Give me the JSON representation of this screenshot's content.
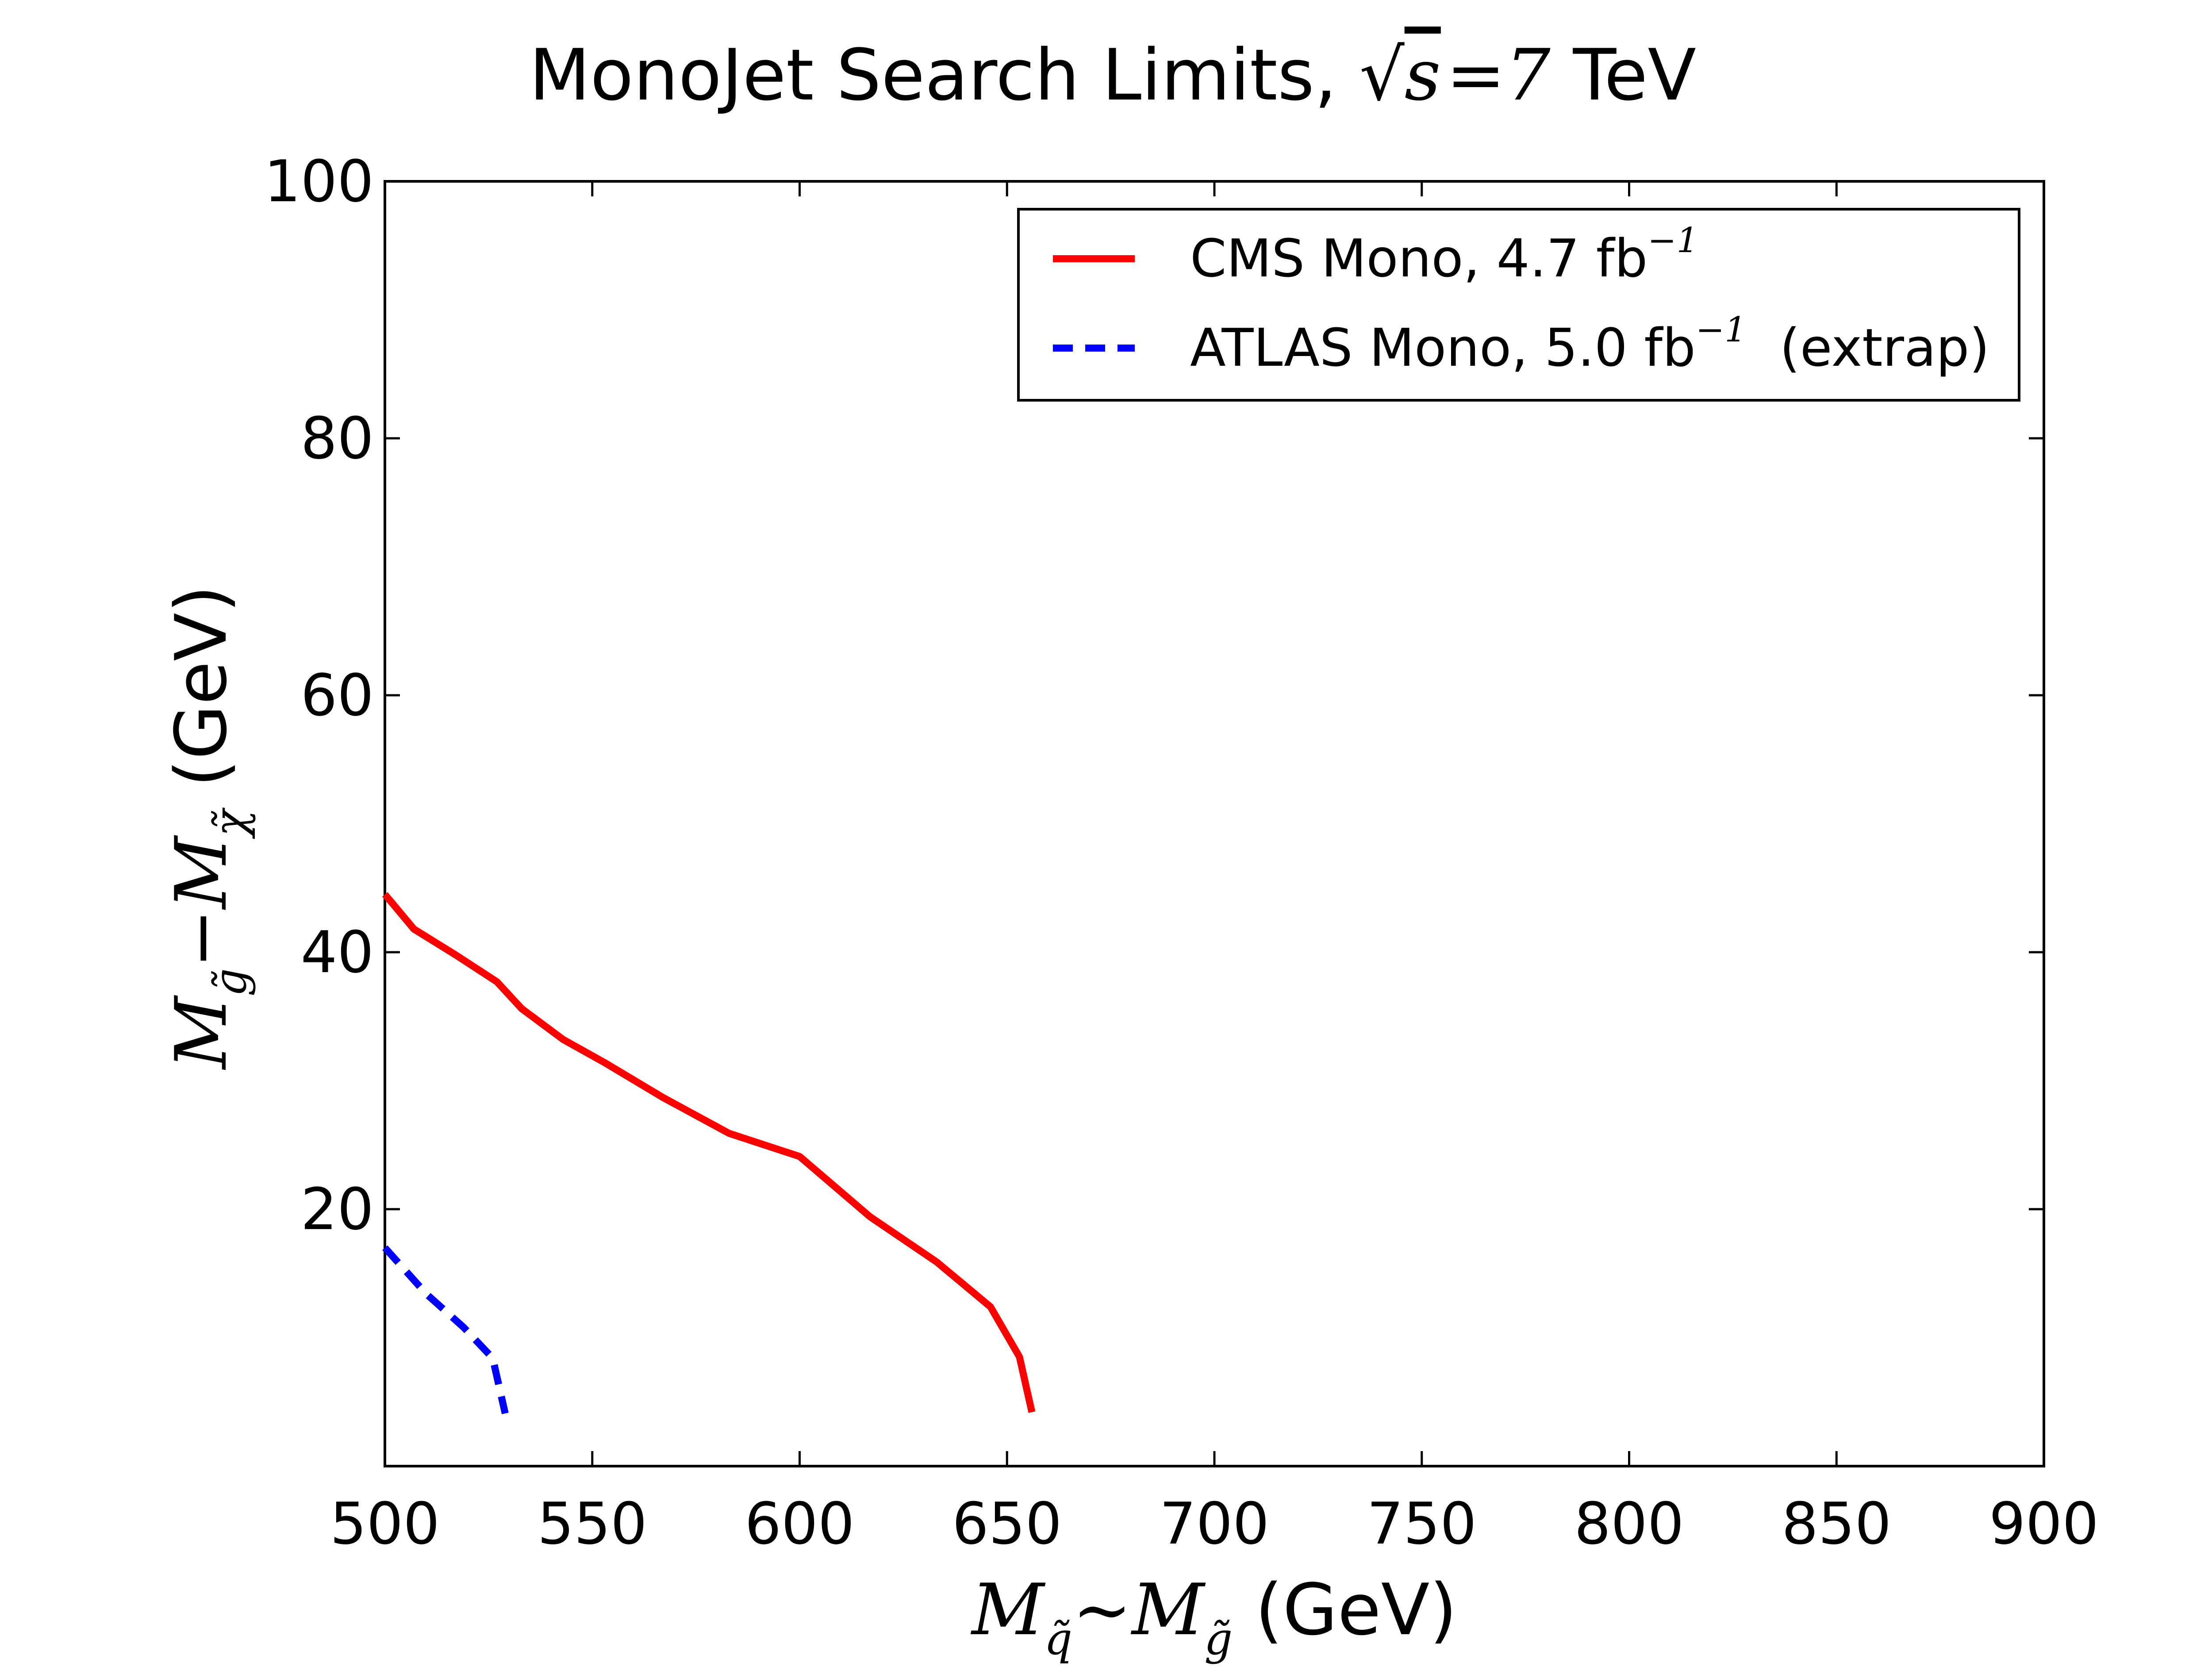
{
  "chart_data": {
    "type": "line",
    "title": {
      "prefix": "MonoJet Search Limits, ",
      "sqrt_symbol": "√",
      "sqrt_arg": "s",
      "equals": "=",
      "energy_value": "7",
      "energy_unit": " TeV"
    },
    "xlabel": {
      "m1": "M",
      "sub1": "q̃",
      "relation": "∼",
      "m2": "M",
      "sub2": "g̃",
      "unit": " (GeV)"
    },
    "ylabel": {
      "m1": "M",
      "sub1": "g̃",
      "relation": "−",
      "m2": "M",
      "sub2": "χ̃",
      "unit": " (GeV)"
    },
    "xlim": [
      500,
      900
    ],
    "ylim": [
      0,
      100
    ],
    "xticks": [
      "500",
      "550",
      "600",
      "650",
      "700",
      "750",
      "800",
      "850",
      "900"
    ],
    "yticks": [
      "20",
      "40",
      "60",
      "80",
      "100"
    ],
    "legend_position": "upper-right",
    "series": [
      {
        "name": "CMS Mono",
        "legend_text": "CMS Mono, 4.7 fb",
        "legend_sup": "−1",
        "legend_suffix": "",
        "color": "#ff0000",
        "style": "solid",
        "x": [
          500,
          507,
          517,
          527,
          533,
          543,
          553,
          567,
          583,
          600,
          617,
          633,
          646,
          653,
          656
        ],
        "y": [
          44.5,
          41.8,
          39.8,
          37.7,
          35.6,
          33.2,
          31.4,
          28.7,
          25.9,
          24.1,
          19.4,
          15.9,
          12.4,
          8.5,
          4.2
        ]
      },
      {
        "name": "ATLAS Mono",
        "legend_text": "ATLAS Mono, 5.0 fb",
        "legend_sup": "−1",
        "legend_suffix": "  (extrap)",
        "color": "#0000ff",
        "style": "dashed",
        "x": [
          500,
          510,
          519,
          526,
          529
        ],
        "y": [
          17.0,
          13.4,
          10.8,
          8.4,
          4.1
        ]
      }
    ]
  }
}
